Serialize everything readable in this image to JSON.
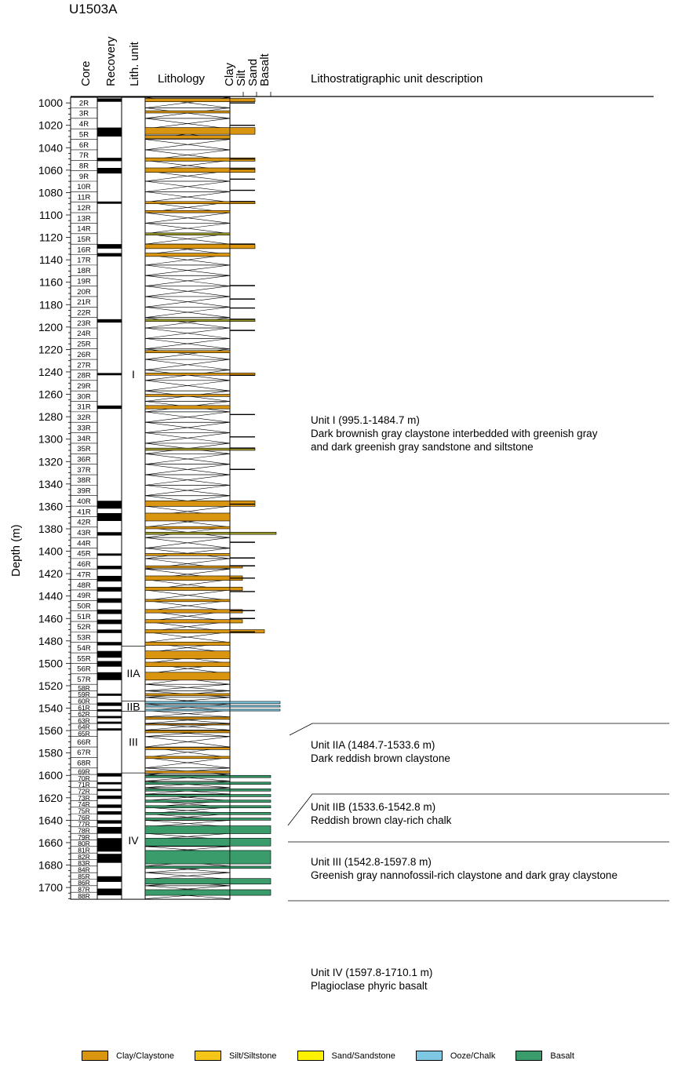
{
  "site": "U1503A",
  "headers": {
    "core": "Core",
    "recovery": "Recovery",
    "lith_unit": "Lith. unit",
    "lithology": "Lithology",
    "grain_sizes": [
      "Clay",
      "Silt",
      "Sand",
      "Basalt"
    ],
    "description": "Lithostratigraphic unit description"
  },
  "y_axis": {
    "label": "Depth (m)",
    "ticks": [
      1000,
      1020,
      1040,
      1060,
      1080,
      1100,
      1120,
      1140,
      1160,
      1180,
      1200,
      1220,
      1240,
      1260,
      1280,
      1300,
      1320,
      1340,
      1360,
      1380,
      1400,
      1420,
      1440,
      1460,
      1480,
      1500,
      1520,
      1540,
      1560,
      1580,
      1600,
      1620,
      1640,
      1660,
      1680,
      1700
    ]
  },
  "cores": [
    "2R",
    "3R",
    "4R",
    "5R",
    "6R",
    "7R",
    "8R",
    "9R",
    "10R",
    "11R",
    "12R",
    "13R",
    "14R",
    "15R",
    "16R",
    "17R",
    "18R",
    "19R",
    "20R",
    "21R",
    "22R",
    "23R",
    "24R",
    "25R",
    "26R",
    "27R",
    "28R",
    "29R",
    "30R",
    "31R",
    "32R",
    "33R",
    "34R",
    "35R",
    "36R",
    "37R",
    "38R",
    "39R",
    "40R",
    "41R",
    "42R",
    "43R",
    "44R",
    "45R",
    "46R",
    "47R",
    "48R",
    "49R",
    "50R",
    "51R",
    "52R",
    "53R",
    "54R",
    "55R",
    "56R",
    "57R",
    "58R",
    "59R",
    "60R",
    "61R",
    "62R",
    "63R",
    "64R",
    "65R",
    "66R",
    "67R",
    "68R",
    "69R",
    "70R",
    "71R",
    "72R",
    "73R",
    "74R",
    "75R",
    "76R",
    "77R",
    "78R",
    "79R",
    "80R",
    "81R",
    "82R",
    "83R",
    "84R",
    "85R",
    "86R",
    "87R",
    "88R"
  ],
  "units": [
    {
      "name": "I",
      "top": 995.1,
      "bottom": 1484.7,
      "title": "Unit I (995.1-1484.7 m)",
      "lines": [
        "Dark brownish gray claystone interbedded with greenish gray",
        "and dark greenish gray sandstone and siltstone"
      ]
    },
    {
      "name": "IIA",
      "top": 1484.7,
      "bottom": 1533.6,
      "title": "Unit IIA (1484.7-1533.6 m)",
      "lines": [
        "Dark reddish brown claystone"
      ]
    },
    {
      "name": "IIB",
      "top": 1533.6,
      "bottom": 1542.8,
      "title": "Unit IIB (1533.6-1542.8 m)",
      "lines": [
        "Reddish brown clay-rich chalk"
      ]
    },
    {
      "name": "III",
      "top": 1542.8,
      "bottom": 1597.8,
      "title": "Unit III (1542.8-1597.8 m)",
      "lines": [
        "Greenish gray nannofossil-rich claystone and dark gray claystone"
      ]
    },
    {
      "name": "IV",
      "top": 1597.8,
      "bottom": 1710.1,
      "title": "Unit IV (1597.8-1710.1 m)",
      "lines": [
        "Plagioclase phyric basalt"
      ]
    }
  ],
  "legend": [
    {
      "label": "Clay/Claystone",
      "color": "#D9950F"
    },
    {
      "label": "Silt/Siltstone",
      "color": "#F5C518"
    },
    {
      "label": "Sand/Sandstone",
      "color": "#FFF200"
    },
    {
      "label": "Ooze/Chalk",
      "color": "#7EC8E3"
    },
    {
      "label": "Basalt",
      "color": "#3A9B6B"
    }
  ],
  "colors": {
    "clay": "#D9950F",
    "silt": "#F5C518",
    "sand": "#FFF200",
    "ooze": "#7EC8E3",
    "basalt": "#3A9B6B",
    "sandish": "#9C9A2A"
  }
}
